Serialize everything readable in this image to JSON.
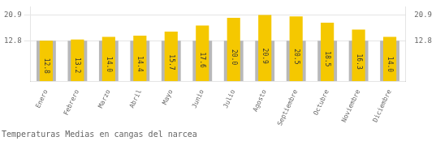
{
  "chart_data": {
    "type": "bar",
    "title": "Temperaturas Medias en cangas del narcea",
    "categories": [
      "Enero",
      "Febrero",
      "Marzo",
      "Abril",
      "Mayo",
      "Junio",
      "Julio",
      "Agosto",
      "Septiembre",
      "Octubre",
      "Noviembre",
      "Diciembre"
    ],
    "series": [
      {
        "color": "#B8B8B8",
        "values": [
          12.8,
          12.8,
          12.8,
          12.8,
          12.8,
          12.8,
          12.8,
          12.8,
          12.8,
          12.8,
          12.8,
          12.8
        ]
      },
      {
        "color": "#F5C800",
        "values": [
          12.8,
          13.2,
          14.0,
          14.4,
          15.7,
          17.6,
          20.0,
          20.9,
          20.5,
          18.5,
          16.3,
          14.0
        ],
        "value_labels": [
          "12.8",
          "13.2",
          "14.0",
          "14.4",
          "15.7",
          "17.6",
          "20.0",
          "20.9",
          "20.5",
          "18.5",
          "16.3",
          "14.0"
        ],
        "data_labels": true
      }
    ],
    "ylim": [
      0,
      23.5
    ],
    "yticks": [
      12.8,
      20.9
    ],
    "y2lim": [
      0,
      23.5
    ],
    "y2ticks": [
      12.8,
      20.9
    ],
    "grid": true
  }
}
